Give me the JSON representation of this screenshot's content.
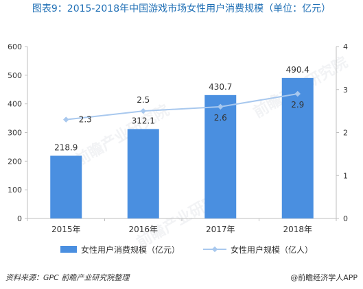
{
  "title": "图表9：2015-2018年中国游戏市场女性用户消费规模（单位：亿元）",
  "source_note": "资料来源：GPC 前瞻产业研究院整理",
  "brand_note": "@前瞻经济学人APP",
  "watermark_text": "前瞻产业研究院",
  "colors": {
    "bar": "#4a8fe0",
    "line": "#a8c8ee",
    "axis": "#bfbfbf",
    "title": "#1f6fb5"
  },
  "chart_data": {
    "type": "bar",
    "categories": [
      "2015年",
      "2016年",
      "2017年",
      "2018年"
    ],
    "series": [
      {
        "name": "女性用户消费规模（亿元）",
        "type": "bar",
        "axis": "left",
        "values": [
          218.9,
          312.1,
          430.7,
          490.4
        ],
        "labels": [
          "218.9",
          "312.1",
          "430.7",
          "490.4"
        ]
      },
      {
        "name": "女性用户规模（亿人）",
        "type": "line",
        "axis": "right",
        "values": [
          2.3,
          2.5,
          2.6,
          2.9
        ],
        "labels": [
          "2.3",
          "2.5",
          "2.6",
          "2.9"
        ]
      }
    ],
    "y_left": {
      "ylim": [
        0,
        600
      ],
      "ticks": [
        "0",
        "100",
        "200",
        "300",
        "400",
        "500",
        "600"
      ]
    },
    "y_right": {
      "ylim": [
        0,
        4
      ],
      "ticks": [
        "0",
        "1",
        "2",
        "3",
        "4"
      ]
    },
    "grid": false,
    "legend_position": "bottom"
  }
}
